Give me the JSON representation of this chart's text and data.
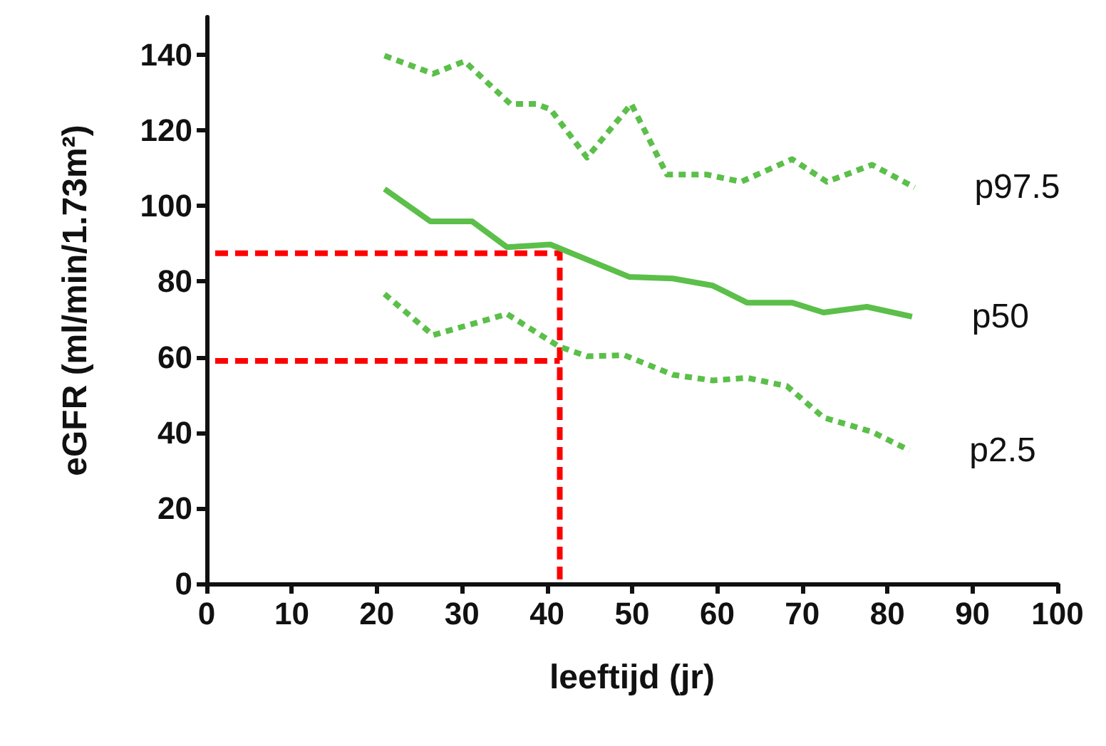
{
  "chart_data": {
    "type": "line",
    "xlabel": "leeftijd (jr)",
    "ylabel": "eGFR (ml/min/1.73m²)",
    "xlim": [
      0,
      100
    ],
    "xticks": [
      0,
      10,
      20,
      30,
      40,
      50,
      60,
      70,
      80,
      90,
      100
    ],
    "ylim": [
      0,
      150
    ],
    "yticks": [
      0,
      20,
      40,
      60,
      80,
      100,
      120,
      140
    ],
    "grid": false,
    "legend": false,
    "marker": "none",
    "series": [
      {
        "name": "p97.5",
        "color": "#5bbf4a",
        "line_style": "dotted",
        "x": [
          20.9,
          26.6,
          30.3,
          35.7,
          38.7,
          40.4,
          44.7,
          49.9,
          54.1,
          58.8,
          62.8,
          68.8,
          72.9,
          78.2,
          83.2
        ],
        "values": [
          139.8,
          135,
          138.3,
          127,
          127,
          125.6,
          112.8,
          127,
          108.3,
          108.3,
          106.4,
          112.4,
          106.4,
          110.9,
          104.9
        ]
      },
      {
        "name": "p50",
        "color": "#5bbf4a",
        "line_style": "solid",
        "x": [
          20.9,
          26.3,
          31.2,
          35.3,
          40.4,
          49.7,
          54.8,
          59.5,
          63.5,
          68.8,
          72.5,
          77.6,
          82.9
        ],
        "values": [
          104.5,
          95.9,
          95.9,
          89.1,
          89.8,
          81.2,
          80.8,
          78.9,
          74.4,
          74.4,
          71.8,
          73.3,
          70.7
        ]
      },
      {
        "name": "p2.5",
        "color": "#5bbf4a",
        "line_style": "dotted",
        "x": [
          20.9,
          26.6,
          35.3,
          41.4,
          44.7,
          49.1,
          54.8,
          59.5,
          63.5,
          68.2,
          72.5,
          78.2,
          82.6
        ],
        "values": [
          76.7,
          65.8,
          71.4,
          62.8,
          60.2,
          60.5,
          55.3,
          53.8,
          54.5,
          52.3,
          44,
          40.2,
          35.3
        ]
      },
      {
        "color": "#ff0000",
        "line_style": "dashed",
        "x": [
          1,
          41.5,
          41.5
        ],
        "values": [
          87.5,
          87.5,
          0
        ]
      },
      {
        "color": "#ff0000",
        "line_style": "dashed",
        "x": [
          1,
          41.5
        ],
        "values": [
          59,
          59
        ]
      }
    ]
  }
}
